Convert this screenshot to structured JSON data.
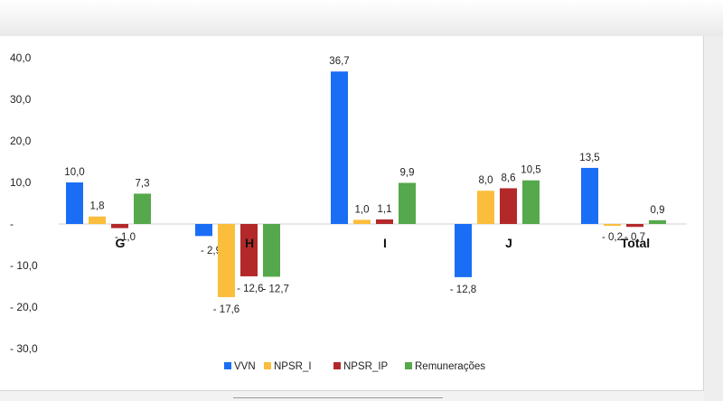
{
  "chart_data": {
    "type": "bar",
    "categories": [
      "G",
      "H",
      "I",
      "J",
      "Total"
    ],
    "series": [
      {
        "name": "VVN",
        "color": "#1a6ef5",
        "values": [
          10.0,
          -2.9,
          36.7,
          -12.8,
          13.5
        ],
        "labels": [
          "10,0",
          "- 2,9",
          "36,7",
          "- 12,8",
          "13,5"
        ]
      },
      {
        "name": "NPSR_I",
        "color": "#fbbd3c",
        "values": [
          1.8,
          -17.6,
          1.0,
          8.0,
          -0.2
        ],
        "labels": [
          "1,8",
          "- 17,6",
          "1,0",
          "8,0",
          "- 0,2"
        ]
      },
      {
        "name": "NPSR_IP",
        "color": "#b3292a",
        "values": [
          -1.0,
          -12.6,
          1.1,
          8.6,
          -0.7
        ],
        "labels": [
          "- 1,0",
          "- 12,6",
          "1,1",
          "8,6",
          "- 0,7"
        ]
      },
      {
        "name": "Remunerações",
        "color": "#55a84b",
        "values": [
          7.3,
          -12.7,
          9.9,
          10.5,
          0.9
        ],
        "labels": [
          "7,3",
          "- 12,7",
          "9,9",
          "10,5",
          "0,9"
        ]
      }
    ],
    "yticks": [
      40,
      30,
      20,
      10,
      0,
      -10,
      -20,
      -30
    ],
    "ytick_labels": [
      "40,0",
      "30,0",
      "20,0",
      "10,0",
      "-",
      "- 10,0",
      "- 20,0",
      "- 30,0"
    ],
    "ylim": [
      -30,
      40
    ],
    "title": "",
    "xlabel": "",
    "ylabel": "",
    "grid": false,
    "legend_position": "bottom"
  }
}
